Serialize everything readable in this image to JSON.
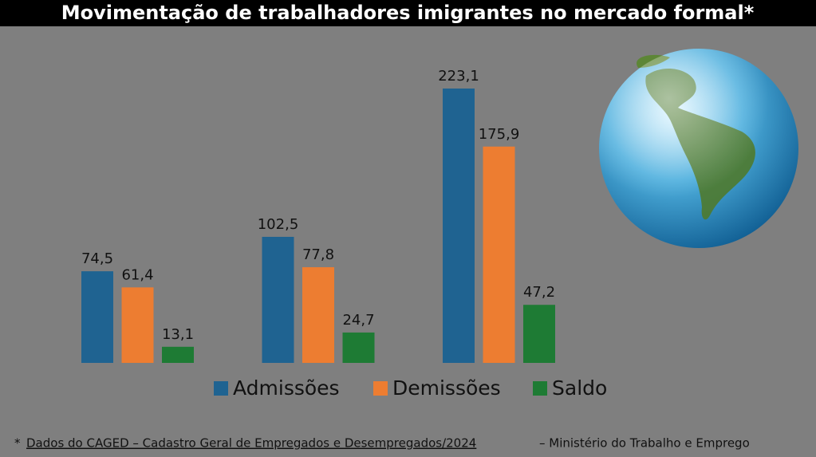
{
  "chart_data": {
    "type": "bar",
    "title": "Movimentação de trabalhadores imigrantes no mercado formal*",
    "categories": [
      null,
      null,
      null
    ],
    "series": [
      {
        "name": "Admissões",
        "color": "#1f6391",
        "values": [
          74.5,
          102.5,
          223.1
        ],
        "value_labels": [
          "74,5",
          "102,5",
          "223,1"
        ]
      },
      {
        "name": "Demissões",
        "color": "#ed7d31",
        "values": [
          61.4,
          77.8,
          175.9
        ],
        "value_labels": [
          "61,4",
          "77,8",
          "175,9"
        ]
      },
      {
        "name": "Saldo",
        "color": "#1e7b34",
        "values": [
          13.1,
          24.7,
          47.2
        ],
        "value_labels": [
          "13,1",
          "24,7",
          "47,2"
        ]
      }
    ],
    "footnote": [
      "*",
      "Dados do CAGED – Cadastro Geral de Empregados e Desempregados/2024",
      "– Ministério do Trabalho e Emprego"
    ]
  }
}
